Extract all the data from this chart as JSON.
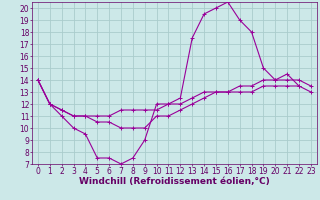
{
  "title": "",
  "xlabel": "Windchill (Refroidissement éolien,°C)",
  "ylabel": "",
  "bg_color": "#cce8e8",
  "line_color": "#990099",
  "grid_color": "#aacccc",
  "xlim": [
    -0.5,
    23.5
  ],
  "ylim": [
    7,
    20.5
  ],
  "yticks": [
    7,
    8,
    9,
    10,
    11,
    12,
    13,
    14,
    15,
    16,
    17,
    18,
    19,
    20
  ],
  "xticks": [
    0,
    1,
    2,
    3,
    4,
    5,
    6,
    7,
    8,
    9,
    10,
    11,
    12,
    13,
    14,
    15,
    16,
    17,
    18,
    19,
    20,
    21,
    22,
    23
  ],
  "line1_x": [
    0,
    1,
    2,
    3,
    4,
    5,
    6,
    7,
    8,
    9,
    10,
    11,
    12,
    13,
    14,
    15,
    16,
    17,
    18,
    19,
    20,
    21,
    22
  ],
  "line1_y": [
    14,
    12,
    11,
    10,
    9.5,
    7.5,
    7.5,
    7,
    7.5,
    9,
    12,
    12,
    12.5,
    17.5,
    19.5,
    20,
    20.5,
    19,
    18,
    15,
    14,
    14.5,
    13.5
  ],
  "line2_x": [
    0,
    1,
    2,
    3,
    4,
    5,
    6,
    7,
    8,
    9,
    10,
    11,
    12,
    13,
    14,
    15,
    16,
    17,
    18,
    19,
    20,
    21,
    22,
    23
  ],
  "line2_y": [
    14,
    12,
    11.5,
    11,
    11,
    11,
    11,
    11.5,
    11.5,
    11.5,
    11.5,
    12,
    12,
    12.5,
    13,
    13,
    13,
    13.5,
    13.5,
    14,
    14,
    14,
    14,
    13.5
  ],
  "line3_x": [
    0,
    1,
    2,
    3,
    4,
    5,
    6,
    7,
    8,
    9,
    10,
    11,
    12,
    13,
    14,
    15,
    16,
    17,
    18,
    19,
    20,
    21,
    22,
    23
  ],
  "line3_y": [
    14,
    12,
    11.5,
    11,
    11,
    10.5,
    10.5,
    10,
    10,
    10,
    11,
    11,
    11.5,
    12,
    12.5,
    13,
    13,
    13,
    13,
    13.5,
    13.5,
    13.5,
    13.5,
    13
  ],
  "font_color": "#660066",
  "tick_fontsize": 5.5,
  "label_fontsize": 6.5
}
